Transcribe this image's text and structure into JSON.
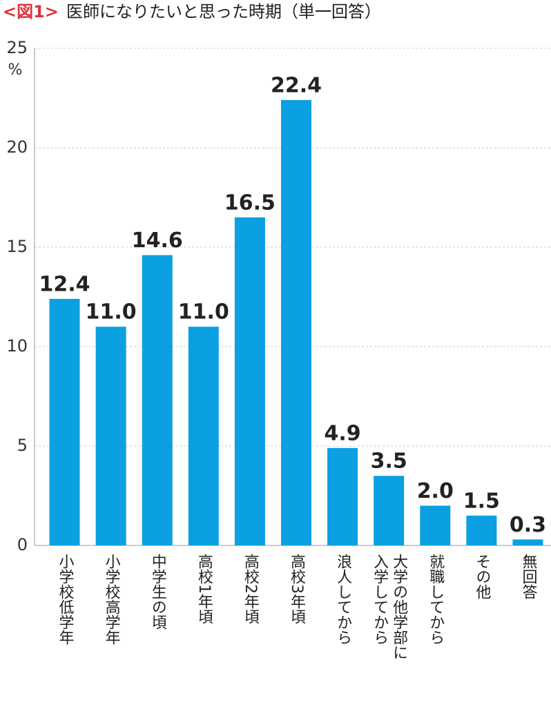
{
  "chart_data": {
    "type": "bar",
    "figure_label": "<図1>",
    "title": "医師になりたいと思った時期（単一回答）",
    "y_unit": "%",
    "categories": [
      "小学校低学年",
      "小学校高学年",
      "中学生の頃",
      "高校1年頃",
      "高校2年頃",
      "高校3年頃",
      "浪人してから",
      "大学の他学部に入学してから",
      "就職してから",
      "その他",
      "無回答"
    ],
    "values": [
      12.4,
      11.0,
      14.6,
      11.0,
      16.5,
      22.4,
      4.9,
      3.5,
      2.0,
      1.5,
      0.3
    ],
    "value_labels": [
      "12.4",
      "11.0",
      "14.6",
      "11.0",
      "16.5",
      "22.4",
      "4.9",
      "3.5",
      "2.0",
      "1.5",
      "0.3"
    ],
    "color": "#0aa0e2",
    "ylim": [
      0,
      25
    ],
    "yticks": [
      0,
      5,
      10,
      15,
      20,
      25
    ],
    "grid": true
  }
}
